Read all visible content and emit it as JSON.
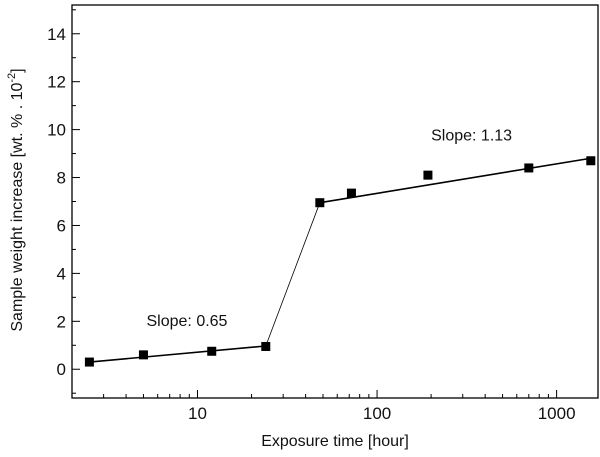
{
  "chart_data": {
    "type": "scatter",
    "xlabel": "Exposure time [hour]",
    "ylabel": {
      "main": "Sample weight increase [wt. % . 10",
      "superscript": "-2",
      "close": "]"
    },
    "x_scale": "log",
    "xlim": [
      2,
      1700
    ],
    "ylim": [
      -1.2,
      15.2
    ],
    "x_major_ticks": [
      10,
      100,
      1000
    ],
    "x_tick_labels": [
      "10",
      "100",
      "1000"
    ],
    "y_major_ticks": [
      0,
      2,
      4,
      6,
      8,
      10,
      12,
      14
    ],
    "y_tick_labels": [
      "0",
      "2",
      "4",
      "6",
      "8",
      "10",
      "12",
      "14"
    ],
    "grid": false,
    "legend": "none",
    "series": [
      {
        "marker": "square",
        "color": "#000000",
        "points": [
          {
            "x": 2.5,
            "y": 0.3
          },
          {
            "x": 5,
            "y": 0.6
          },
          {
            "x": 12,
            "y": 0.75
          },
          {
            "x": 24,
            "y": 0.95
          },
          {
            "x": 48,
            "y": 6.95
          },
          {
            "x": 72,
            "y": 7.35
          },
          {
            "x": 192,
            "y": 8.1
          },
          {
            "x": 700,
            "y": 8.4
          },
          {
            "x": 1550,
            "y": 8.7
          }
        ]
      }
    ],
    "fit_lines": [
      {
        "x": [
          2.5,
          24
        ],
        "y": [
          0.3,
          0.97
        ],
        "style": "solid"
      },
      {
        "x": [
          24,
          48
        ],
        "y": [
          0.97,
          6.95
        ],
        "style": "thin"
      },
      {
        "x": [
          48,
          1600
        ],
        "y": [
          6.95,
          8.82
        ],
        "style": "solid"
      }
    ],
    "annotations": [
      {
        "text": "Slope: 0.65",
        "x": 5.2,
        "y": 1.8
      },
      {
        "text": "Slope: 1.13",
        "x": 200,
        "y": 9.55
      }
    ]
  }
}
